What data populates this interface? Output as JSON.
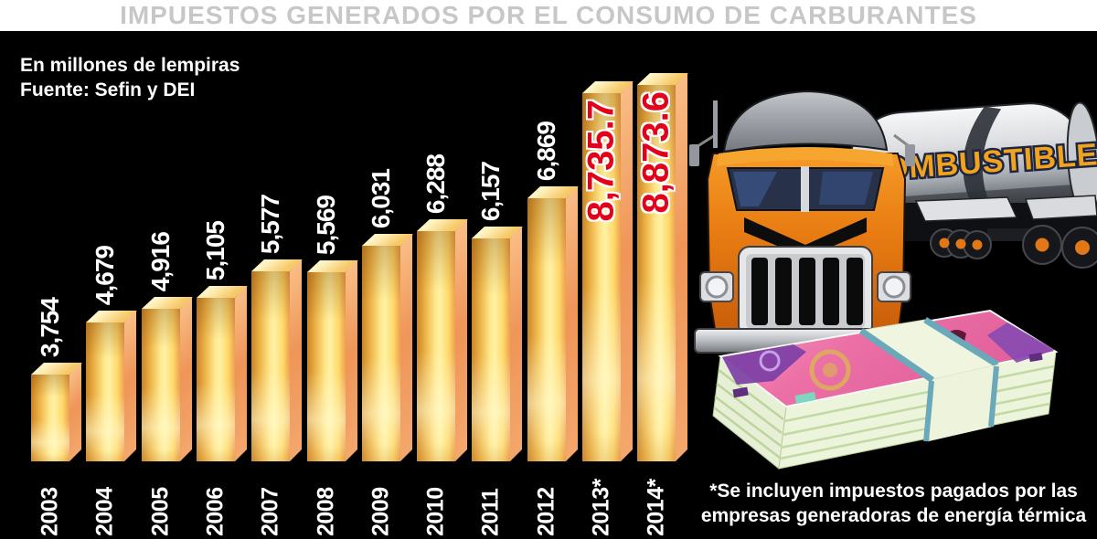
{
  "header": {
    "title": "IMPUESTOS GENERADOS POR EL CONSUMO DE CARBURANTES"
  },
  "notes": {
    "units_note": "En millones de lempiras",
    "source_note": "Fuente: Sefin y DEI"
  },
  "footnote": {
    "line1": "*Se incluyen impuestos pagados por las",
    "line2": "empresas generadoras de energía térmica"
  },
  "illustrations": {
    "truck_tank_label": "COMBUSTIBLE"
  },
  "colors": {
    "background": "#000000",
    "title_gray": "#c7c7c7",
    "label_white": "#ffffff",
    "highlight_red": "#e2001a",
    "bar_gold": "#ffe88c",
    "bar_side_salmon": "#f09a5e",
    "bar_top_cream": "#fff4c4",
    "truck_orange": "#e87c12",
    "tank_silver": "#d9dadd",
    "combustible_orange": "#f2a31d",
    "money_pink": "#ec6fa6",
    "money_green": "#e9f2d8"
  },
  "chart_data": {
    "type": "bar",
    "title": "Impuestos generados por el consumo de carburantes",
    "units": "millones de lempiras",
    "source": "Sefin y DEI",
    "categories": [
      "2003",
      "2004",
      "2005",
      "2006",
      "2007",
      "2008",
      "2009",
      "2010",
      "2011",
      "2012",
      "2013*",
      "2014*"
    ],
    "values": [
      3754,
      4679,
      4916,
      5105,
      5577,
      5569,
      6031,
      6288,
      6157,
      6869,
      8735.7,
      8873.6
    ],
    "value_labels": [
      "3,754",
      "4,679",
      "4,916",
      "5,105",
      "5,577",
      "5,569",
      "6,031",
      "6,288",
      "6,157",
      "6,869",
      "8,735.7",
      "8,873.6"
    ],
    "highlight_indices": [
      10,
      11
    ],
    "highlight_label_color": "#e2001a",
    "label_color": "#ffffff",
    "grid": false,
    "legend_position": "none",
    "orientation": "vertical",
    "baseline_note": "bar heights exaggerated (non-zero visual baseline)"
  }
}
